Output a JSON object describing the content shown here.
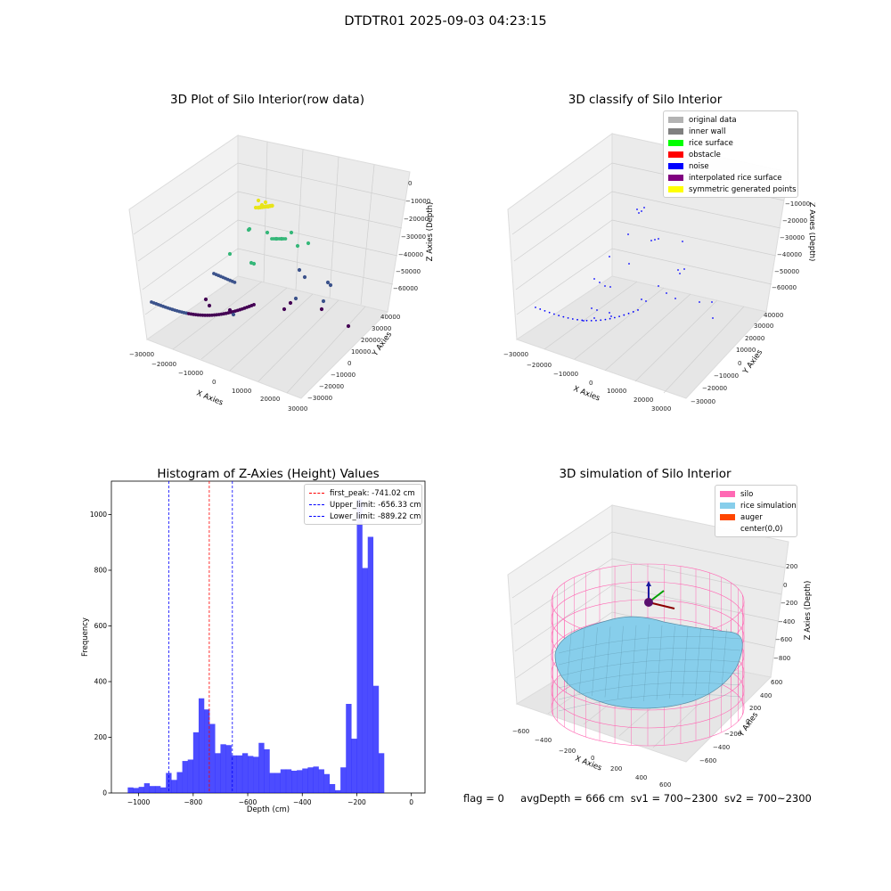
{
  "figure_title": "DTDTR01 2025-09-03 04:23:15",
  "status": {
    "flag": "flag = 0",
    "avg_depth": "avgDepth = 666 cm",
    "sv1": "sv1 = 700~2300",
    "sv2": "sv2 = 700~2300"
  },
  "chart_data": [
    {
      "type": "scatter",
      "title": "3D Plot of Silo Interior(row data)",
      "xlabel": "X Axies",
      "ylabel": "Y Axies",
      "zlabel": "Z Axies (Depth)",
      "x_ticks": [
        "−30000",
        "−20000",
        "−10000",
        "0",
        "10000",
        "20000",
        "30000"
      ],
      "y_ticks": [
        "−30000",
        "−20000",
        "−10000",
        "0",
        "10000",
        "20000",
        "30000",
        "40000"
      ],
      "z_ticks": [
        "0",
        "−10000",
        "−20000",
        "−30000",
        "−40000",
        "−50000",
        "−60000"
      ],
      "colors": {
        "high": "#e8e419",
        "mid": "#35b779",
        "low": "#3b528b",
        "deep": "#440154"
      }
    },
    {
      "type": "scatter",
      "title": "3D classify of Silo Interior",
      "xlabel": "X Axies",
      "ylabel": "Y Axies",
      "zlabel": "Z Axies (Depth)",
      "x_ticks": [
        "−30000",
        "−20000",
        "−10000",
        "0",
        "10000",
        "20000",
        "30000"
      ],
      "y_ticks": [
        "−30000",
        "−20000",
        "−10000",
        "0",
        "10000",
        "20000",
        "30000",
        "40000"
      ],
      "z_ticks": [
        "0",
        "−10000",
        "−20000",
        "−30000",
        "−40000",
        "−50000",
        "−60000"
      ],
      "legend": [
        {
          "label": "original data",
          "color": "#b3b3b3"
        },
        {
          "label": "inner wall",
          "color": "#808080"
        },
        {
          "label": "rice surface",
          "color": "#00ff00"
        },
        {
          "label": "obstacle",
          "color": "#ff0000"
        },
        {
          "label": "noise",
          "color": "#0000ff"
        },
        {
          "label": "interpolated rice surface",
          "color": "#800080"
        },
        {
          "label": "symmetric generated points",
          "color": "#ffff00"
        }
      ]
    },
    {
      "type": "bar",
      "title": "Histogram of Z-Axies (Height) Values",
      "xlabel": "Depth (cm)",
      "ylabel": "Frequency",
      "xlim": [
        -1100,
        50
      ],
      "ylim": [
        0,
        1120
      ],
      "x_ticks": [
        -1000,
        -800,
        -600,
        -400,
        -200,
        0
      ],
      "y_ticks": [
        0,
        200,
        400,
        600,
        800,
        1000
      ],
      "bar_color": "#0000ff",
      "bin_start": -1040,
      "bin_width": 20,
      "values": [
        20,
        18,
        22,
        35,
        25,
        25,
        20,
        72,
        47,
        75,
        115,
        120,
        218,
        340,
        300,
        248,
        143,
        175,
        172,
        135,
        135,
        143,
        133,
        130,
        180,
        157,
        72,
        72,
        85,
        85,
        80,
        82,
        88,
        92,
        95,
        85,
        68,
        32,
        10,
        92,
        320,
        195,
        1055,
        808,
        920,
        385,
        143
      ],
      "vlines": [
        {
          "label": "first_peak: -741.02 cm",
          "x": -741.02,
          "color": "#ff0000"
        },
        {
          "label": "Upper_limit: -656.33 cm",
          "x": -656.33,
          "color": "#0000ff"
        },
        {
          "label": "Lower_limit: -889.22 cm",
          "x": -889.22,
          "color": "#0000ff"
        }
      ]
    },
    {
      "type": "surface",
      "title": "3D simulation of Silo Interior",
      "xlabel": "X Axies",
      "ylabel": "Y Axies",
      "zlabel": "Z Axies (Depth)",
      "x_ticks": [
        "−600",
        "−400",
        "−200",
        "0",
        "200",
        "400",
        "600"
      ],
      "y_ticks": [
        "−600",
        "−400",
        "−200",
        "0",
        "200",
        "400",
        "600"
      ],
      "z_ticks": [
        "200",
        "0",
        "−200",
        "−400",
        "−600",
        "−800"
      ],
      "legend": [
        {
          "label": "silo",
          "color": "#ff69b4"
        },
        {
          "label": "rice simulation",
          "color": "#87ceeb"
        },
        {
          "label": "auger",
          "color": "#ff4500"
        },
        {
          "label": "center(0,0)",
          "color": ""
        }
      ]
    }
  ]
}
